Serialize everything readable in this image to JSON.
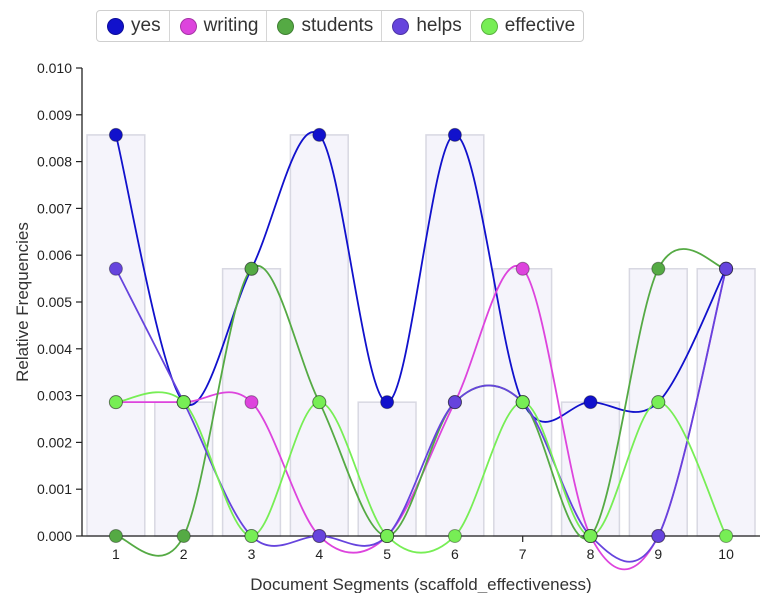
{
  "chart_data": {
    "type": "line",
    "xlabel": "Document Segments (scaffold_effectiveness)",
    "ylabel": "Relative Frequencies",
    "x": [
      "1",
      "2",
      "3",
      "4",
      "5",
      "6",
      "7",
      "8",
      "9",
      "10"
    ],
    "ylim": [
      0,
      0.01
    ],
    "yticks": [
      "0.000",
      "0.001",
      "0.002",
      "0.003",
      "0.004",
      "0.005",
      "0.006",
      "0.007",
      "0.008",
      "0.009",
      "0.010"
    ],
    "legend_position": "top",
    "bars": [
      0.00857,
      0.00286,
      0.00571,
      0.00857,
      0.00286,
      0.00857,
      0.00571,
      0.00286,
      0.00571,
      0.00571
    ],
    "series": [
      {
        "name": "yes",
        "color": "#1111cc",
        "values": [
          0.00857,
          0.00286,
          0.00571,
          0.00857,
          0.00286,
          0.00857,
          0.00286,
          0.00286,
          0.00286,
          0.00571
        ]
      },
      {
        "name": "writing",
        "color": "#dd44dd",
        "values": [
          0.00286,
          0.00286,
          0.00286,
          0.0,
          0.0,
          0.00286,
          0.00571,
          0.0,
          0.0,
          0.00571
        ]
      },
      {
        "name": "students",
        "color": "#55aa44",
        "values": [
          0.0,
          0.0,
          0.00571,
          0.00286,
          0.0,
          0.00286,
          0.00286,
          0.0,
          0.00571,
          0.00571
        ]
      },
      {
        "name": "helps",
        "color": "#6644dd",
        "values": [
          0.00571,
          0.00286,
          0.0,
          0.0,
          0.0,
          0.00286,
          0.00286,
          0.0,
          0.0,
          0.00571
        ]
      },
      {
        "name": "effective",
        "color": "#77ee55",
        "values": [
          0.00286,
          0.00286,
          0.0,
          0.00286,
          0.0,
          0.0,
          0.00286,
          0.0,
          0.00286,
          0.0
        ]
      }
    ]
  }
}
